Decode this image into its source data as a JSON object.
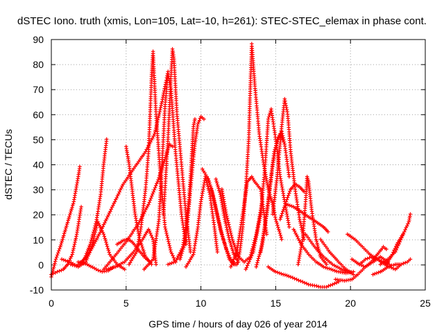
{
  "chart_data": {
    "type": "scatter",
    "title": "dSTEC Iono. truth (xmis, Lon=105, Lat=-10, h=261): STEC-STEC_elemax in phase cont.",
    "xlabel": "GPS time / hours of day 026 of year 2014",
    "ylabel": "dSTEC  / TECUs",
    "xlim": [
      0,
      25
    ],
    "ylim": [
      -10,
      90
    ],
    "xticks": [
      0,
      5,
      10,
      15,
      20,
      25
    ],
    "yticks": [
      -10,
      0,
      10,
      20,
      30,
      40,
      50,
      60,
      70,
      80,
      90
    ],
    "grid": true,
    "marker": "+",
    "color": "#ff0000",
    "series": [
      {
        "x": [
          0.0,
          0.3,
          0.6,
          0.9,
          1.2,
          1.5,
          1.8,
          1.9
        ],
        "y": [
          -5,
          2,
          7,
          13,
          19,
          25,
          35,
          39
        ]
      },
      {
        "x": [
          0.0,
          0.4,
          0.8,
          1.1,
          1.4,
          1.7,
          2.0
        ],
        "y": [
          -4,
          -3,
          -2,
          0,
          4,
          12,
          23
        ]
      },
      {
        "x": [
          0.7,
          1.2,
          1.7,
          2.2,
          2.6,
          3.0,
          3.3,
          3.5,
          3.7
        ],
        "y": [
          2,
          1,
          -0.5,
          2,
          8,
          17,
          28,
          40,
          50
        ]
      },
      {
        "x": [
          1.3,
          1.8,
          2.3,
          2.7,
          3.1,
          3.5,
          3.9,
          4.4,
          4.9
        ],
        "y": [
          0,
          -1,
          1,
          7,
          17,
          12,
          4,
          0,
          -2
        ]
      },
      {
        "x": [
          1.8,
          2.4,
          3.0,
          3.4,
          3.8,
          4.2
        ],
        "y": [
          1,
          0,
          -2,
          -3,
          -2.5,
          -1
        ]
      },
      {
        "x": [
          1.9,
          2.5,
          3.2,
          4.0,
          4.8,
          5.6,
          6.3,
          6.9,
          7.4,
          7.8
        ],
        "y": [
          0,
          4,
          12,
          22,
          32,
          39,
          45,
          52,
          65,
          77
        ]
      },
      {
        "x": [
          3.5,
          4.2,
          5.0,
          5.8,
          6.5,
          7.1,
          7.6,
          7.9,
          8.1
        ],
        "y": [
          -2,
          3,
          9,
          16,
          24,
          33,
          42,
          48,
          47
        ]
      },
      {
        "x": [
          3.7,
          4.3,
          4.9,
          5.5,
          6.1,
          6.5,
          6.8,
          7.0
        ],
        "y": [
          -2,
          -1,
          1,
          5,
          10,
          14,
          10,
          0
        ]
      },
      {
        "x": [
          4.4,
          4.8,
          5.1,
          5.4,
          5.8,
          6.2,
          6.6
        ],
        "y": [
          8,
          9.5,
          10,
          9,
          6,
          3,
          1
        ]
      },
      {
        "x": [
          5.0,
          5.2,
          5.4,
          5.6,
          5.9,
          6.3,
          6.7
        ],
        "y": [
          47,
          40,
          30,
          20,
          10,
          3,
          0
        ]
      },
      {
        "x": [
          5.2,
          5.7,
          6.0,
          6.3,
          6.5,
          6.6,
          6.7,
          6.8,
          7.0,
          7.3,
          7.6,
          8.0,
          8.3
        ],
        "y": [
          0,
          5,
          15,
          30,
          45,
          60,
          75,
          85,
          60,
          35,
          15,
          5,
          1
        ]
      },
      {
        "x": [
          6.2,
          6.8,
          7.2,
          7.4,
          7.6,
          7.8,
          8.0,
          8.3,
          8.7,
          9.0
        ],
        "y": [
          -2,
          2,
          18,
          40,
          63,
          76,
          70,
          45,
          20,
          8
        ]
      },
      {
        "x": [
          7.5,
          7.8,
          8.0,
          8.1,
          8.2,
          8.4,
          8.7,
          9.0,
          9.3
        ],
        "y": [
          20,
          50,
          75,
          86,
          82,
          60,
          40,
          20,
          5
        ]
      },
      {
        "x": [
          7.8,
          8.3,
          8.8,
          9.2,
          9.4,
          9.5,
          9.6
        ],
        "y": [
          0,
          1,
          7,
          25,
          45,
          55,
          58
        ]
      },
      {
        "x": [
          8.6,
          9.0,
          9.3,
          9.6,
          9.8,
          10.0,
          10.2
        ],
        "y": [
          2,
          10,
          30,
          48,
          56,
          59,
          58
        ]
      },
      {
        "x": [
          9.0,
          9.5,
          9.8,
          10.0,
          10.3,
          10.6,
          10.9,
          11.1
        ],
        "y": [
          -1,
          4,
          15,
          25,
          35,
          28,
          15,
          5
        ]
      },
      {
        "x": [
          10.1,
          10.4,
          10.7,
          11.0,
          11.3,
          11.6,
          11.9,
          12.2
        ],
        "y": [
          38,
          35,
          30,
          22,
          14,
          8,
          2,
          0
        ]
      },
      {
        "x": [
          10.5,
          10.8,
          11.1,
          11.4,
          11.7,
          12.0,
          12.3
        ],
        "y": [
          34,
          28,
          20,
          12,
          6,
          2,
          0
        ]
      },
      {
        "x": [
          11.0,
          11.3,
          11.6,
          11.9,
          12.2,
          12.5
        ],
        "y": [
          34,
          28,
          18,
          10,
          4,
          1
        ]
      },
      {
        "x": [
          11.4,
          11.7,
          12.1,
          12.5,
          12.9,
          13.3,
          13.7,
          14.1
        ],
        "y": [
          30,
          20,
          10,
          3,
          1,
          3,
          12,
          25
        ]
      },
      {
        "x": [
          12.0,
          12.4,
          12.8,
          13.1,
          13.4,
          13.6,
          14.0,
          14.4
        ],
        "y": [
          -1,
          5,
          20,
          33,
          35,
          33,
          30,
          12
        ]
      },
      {
        "x": [
          12.4,
          12.6,
          12.8,
          13.0,
          13.2,
          13.3,
          13.4,
          13.6,
          13.9,
          14.2,
          14.5,
          14.8,
          15.0,
          15.2,
          15.4
        ],
        "y": [
          0,
          5,
          15,
          30,
          50,
          70,
          88,
          72,
          52,
          40,
          30,
          24,
          18,
          14,
          10
        ]
      },
      {
        "x": [
          13.0,
          13.5,
          14.0,
          14.3,
          14.5,
          14.7,
          15.0,
          15.3,
          15.6,
          15.9
        ],
        "y": [
          -2,
          5,
          20,
          40,
          58,
          62,
          50,
          35,
          25,
          15
        ]
      },
      {
        "x": [
          13.7,
          14.1,
          14.5,
          14.9,
          15.3,
          15.6,
          15.9
        ],
        "y": [
          -1,
          8,
          25,
          45,
          52,
          48,
          35
        ]
      },
      {
        "x": [
          14.0,
          14.4,
          14.8,
          15.1,
          15.4,
          15.6
        ],
        "y": [
          5,
          20,
          40,
          50,
          53,
          48
        ]
      },
      {
        "x": [
          14.8,
          15.1,
          15.4,
          15.6,
          15.8,
          16.0,
          16.3,
          16.6,
          16.9
        ],
        "y": [
          20,
          35,
          55,
          66,
          60,
          45,
          30,
          18,
          10
        ]
      },
      {
        "x": [
          15.3,
          15.7,
          16.0,
          16.3,
          16.6,
          16.9
        ],
        "y": [
          18,
          25,
          30,
          32,
          31,
          29
        ]
      },
      {
        "x": [
          15.7,
          16.2,
          16.7,
          17.2,
          17.7,
          18.2,
          18.5
        ],
        "y": [
          24,
          23,
          21,
          19,
          17,
          15,
          13
        ]
      },
      {
        "x": [
          14.5,
          15.0,
          15.5,
          16.0,
          16.4,
          16.8,
          17.2,
          17.6,
          18.0,
          18.4,
          18.8,
          19.2
        ],
        "y": [
          -1,
          -3,
          -4,
          -5,
          -6,
          -7,
          -8,
          -8.5,
          -9,
          -9,
          -8,
          -7
        ]
      },
      {
        "x": [
          16.5,
          16.8,
          17.0,
          17.1,
          17.2,
          17.4,
          17.7,
          18.0,
          18.4
        ],
        "y": [
          0,
          10,
          25,
          35,
          33,
          22,
          10,
          3,
          0
        ]
      },
      {
        "x": [
          16.2,
          16.7,
          17.2,
          17.7,
          18.2,
          18.7,
          19.2,
          19.7,
          20.2
        ],
        "y": [
          14,
          8,
          4,
          1,
          -1,
          -2,
          -3,
          -3.5,
          -3
        ]
      },
      {
        "x": [
          17.0,
          17.6,
          18.2,
          18.8,
          19.4,
          19.9
        ],
        "y": [
          12,
          7,
          3,
          0,
          -2,
          -3
        ]
      },
      {
        "x": [
          18.0,
          18.6,
          19.2,
          19.7,
          20.2
        ],
        "y": [
          10,
          5,
          1,
          -2,
          -4
        ]
      },
      {
        "x": [
          19.0,
          19.6,
          20.1,
          20.5,
          21.0,
          21.5,
          22.0,
          22.5
        ],
        "y": [
          -6,
          -6.5,
          -6,
          -4,
          -1,
          1,
          3,
          1
        ]
      },
      {
        "x": [
          19.8,
          20.3,
          20.8,
          21.3,
          21.8,
          22.3,
          22.6
        ],
        "y": [
          12,
          10,
          7,
          4,
          2,
          0,
          -1
        ]
      },
      {
        "x": [
          20.1,
          20.6,
          21.0,
          21.4,
          21.8,
          22.2,
          22.4
        ],
        "y": [
          2,
          0,
          -1,
          1,
          4,
          7,
          6
        ]
      },
      {
        "x": [
          20.6,
          21.0,
          21.4,
          21.8,
          22.2,
          22.6
        ],
        "y": [
          0,
          2,
          3,
          2,
          1,
          0
        ]
      },
      {
        "x": [
          22.0,
          22.5,
          23.0,
          23.3,
          23.6,
          23.9,
          24.0
        ],
        "y": [
          0,
          2,
          5,
          9,
          13,
          17,
          20
        ]
      },
      {
        "x": [
          22.4,
          22.8,
          23.1,
          23.5
        ],
        "y": [
          0,
          4,
          8,
          12
        ]
      },
      {
        "x": [
          22.6,
          23.0,
          23.4,
          23.8,
          24.0
        ],
        "y": [
          -1,
          -2,
          0,
          1,
          2
        ]
      },
      {
        "x": [
          21.5,
          22.0,
          22.5,
          23.0,
          23.3
        ],
        "y": [
          -4,
          -3,
          -1,
          0,
          0
        ]
      }
    ]
  }
}
